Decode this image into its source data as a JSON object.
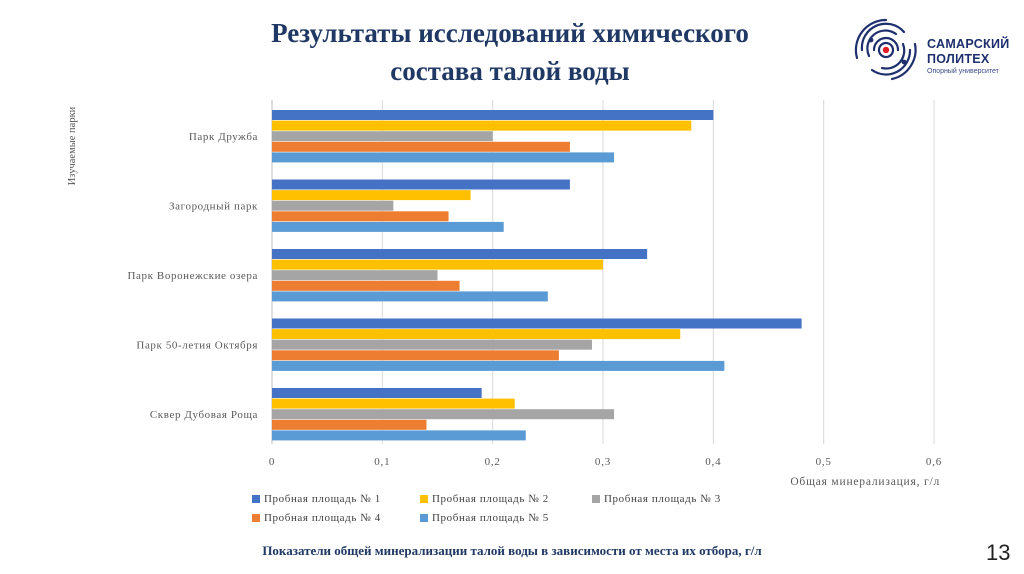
{
  "slide": {
    "title_line1": "Результаты исследований химического",
    "title_line2": "состава талой воды",
    "caption": "Показатели общей минерализации талой воды в зависимости от места их отбора, г/л",
    "page_number": "13"
  },
  "logo": {
    "line1": "САМАРСКИЙ",
    "line2": "ПОЛИТЕХ",
    "line3": "Опорный университет",
    "colors": {
      "primary": "#1e2f6e",
      "accent": "#e31e24"
    }
  },
  "chart_data": {
    "type": "bar",
    "orientation": "horizontal",
    "title": "",
    "xlabel": "Общая минерализация, г/л",
    "ylabel": "Изучаемые парки",
    "xlim": [
      0,
      0.6
    ],
    "xticks": [
      "0",
      "0,1",
      "0,2",
      "0,3",
      "0,4",
      "0,5",
      "0,6"
    ],
    "grid": "vertical",
    "legend_position": "bottom",
    "categories": [
      "Парк Дружба",
      "Загородный парк",
      "Парк Воронежские озера",
      "Парк 50-летия Октября",
      "Сквер Дубовая Роща"
    ],
    "series": [
      {
        "name": "Пробная площадь № 1",
        "color": "#4472c4",
        "values": [
          0.4,
          0.27,
          0.34,
          0.48,
          0.19
        ]
      },
      {
        "name": "Пробная площадь № 2",
        "color": "#ffc000",
        "values": [
          0.38,
          0.18,
          0.3,
          0.37,
          0.22
        ]
      },
      {
        "name": "Пробная площадь № 3",
        "color": "#a5a5a5",
        "values": [
          0.2,
          0.11,
          0.15,
          0.29,
          0.31
        ]
      },
      {
        "name": "Пробная площадь № 4",
        "color": "#ed7d31",
        "values": [
          0.27,
          0.16,
          0.17,
          0.26,
          0.14
        ]
      },
      {
        "name": "Пробная площадь № 5",
        "color": "#5b9bd5",
        "values": [
          0.31,
          0.21,
          0.25,
          0.41,
          0.23
        ]
      }
    ]
  }
}
